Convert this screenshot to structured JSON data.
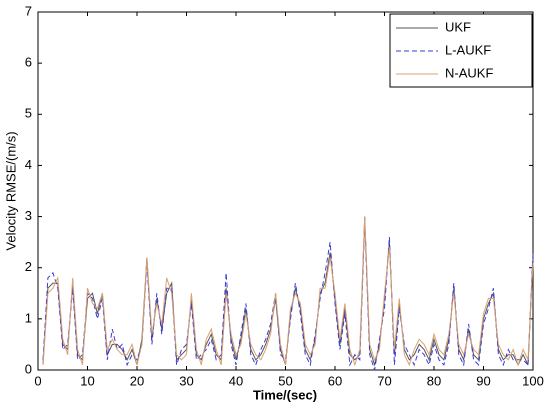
{
  "chart_data": {
    "type": "line",
    "xlabel": "Time/(sec)",
    "ylabel": "Velocity RMSE/(m/s)",
    "x": [
      1,
      2,
      3,
      4,
      5,
      6,
      7,
      8,
      9,
      10,
      11,
      12,
      13,
      14,
      15,
      16,
      17,
      18,
      19,
      20,
      21,
      22,
      23,
      24,
      25,
      26,
      27,
      28,
      29,
      30,
      31,
      32,
      33,
      34,
      35,
      36,
      37,
      38,
      39,
      40,
      41,
      42,
      43,
      44,
      45,
      46,
      47,
      48,
      49,
      50,
      51,
      52,
      53,
      54,
      55,
      56,
      57,
      58,
      59,
      60,
      61,
      62,
      63,
      64,
      65,
      66,
      67,
      68,
      69,
      70,
      71,
      72,
      73,
      74,
      75,
      76,
      77,
      78,
      79,
      80,
      81,
      82,
      83,
      84,
      85,
      86,
      87,
      88,
      89,
      90,
      91,
      92,
      93,
      94,
      95,
      96,
      97,
      98,
      99,
      100
    ],
    "series": [
      {
        "name": "UKF",
        "color": "#555555",
        "dashed": false,
        "values": [
          0.1,
          1.6,
          1.7,
          1.7,
          0.5,
          0.4,
          1.7,
          0.3,
          0.2,
          1.4,
          1.5,
          1.1,
          1.5,
          0.3,
          0.5,
          0.5,
          0.4,
          0.2,
          0.4,
          0.1,
          0.6,
          2.2,
          0.6,
          1.4,
          0.8,
          1.5,
          1.7,
          0.2,
          0.3,
          0.4,
          1.4,
          0.3,
          0.2,
          0.5,
          0.7,
          0.3,
          0.2,
          1.6,
          0.6,
          0.2,
          0.6,
          1.2,
          0.4,
          0.2,
          0.3,
          0.5,
          0.8,
          1.4,
          0.4,
          0.1,
          1.1,
          1.6,
          1.2,
          0.4,
          0.2,
          0.6,
          1.5,
          1.7,
          2.3,
          1.4,
          0.5,
          1.2,
          0.3,
          0.2,
          0.3,
          3.0,
          0.4,
          0.1,
          0.5,
          1.4,
          2.5,
          0.3,
          1.3,
          0.4,
          0.2,
          0.3,
          0.5,
          0.4,
          0.2,
          0.6,
          0.3,
          0.2,
          0.6,
          1.6,
          0.4,
          0.2,
          0.8,
          0.3,
          0.2,
          1.0,
          1.3,
          1.5,
          0.4,
          0.2,
          0.3,
          0.3,
          0.1,
          0.3,
          0.1,
          2.2
        ]
      },
      {
        "name": "L-AUKF",
        "color": "#3a3ad8",
        "dashed": true,
        "values": [
          0.2,
          1.8,
          1.9,
          1.6,
          0.4,
          0.5,
          1.6,
          0.2,
          0.3,
          1.5,
          1.4,
          1.0,
          1.4,
          0.2,
          0.8,
          0.4,
          0.5,
          0.1,
          0.3,
          0.2,
          0.5,
          2.1,
          0.5,
          1.5,
          0.7,
          1.6,
          1.6,
          0.1,
          0.4,
          0.5,
          1.3,
          0.2,
          0.3,
          0.4,
          0.6,
          0.2,
          0.3,
          1.9,
          0.5,
          0.1,
          0.7,
          1.3,
          0.3,
          0.1,
          0.4,
          0.6,
          0.9,
          1.5,
          0.3,
          0.2,
          1.0,
          1.7,
          1.1,
          0.3,
          0.1,
          0.7,
          1.4,
          1.9,
          2.5,
          1.3,
          0.4,
          1.1,
          0.1,
          0.3,
          0.2,
          2.9,
          0.3,
          0.0,
          0.6,
          1.2,
          2.6,
          0.1,
          1.2,
          0.5,
          0.3,
          0.1,
          0.4,
          0.3,
          0.1,
          0.5,
          0.2,
          0.1,
          0.5,
          1.7,
          0.3,
          0.1,
          0.9,
          0.2,
          0.1,
          0.9,
          1.2,
          1.6,
          0.3,
          0.1,
          0.4,
          0.2,
          0.2,
          0.2,
          0.1,
          2.3
        ]
      },
      {
        "name": "N-AUKF",
        "color": "#d9a070",
        "dashed": false,
        "values": [
          0.1,
          1.5,
          1.6,
          1.8,
          0.6,
          0.3,
          1.8,
          0.4,
          0.1,
          1.6,
          1.3,
          1.2,
          1.5,
          0.4,
          0.6,
          0.4,
          0.3,
          0.3,
          0.5,
          0.1,
          0.5,
          2.2,
          0.7,
          1.3,
          0.9,
          1.8,
          1.5,
          0.3,
          0.2,
          0.3,
          1.5,
          0.4,
          0.1,
          0.6,
          0.8,
          0.4,
          0.1,
          1.5,
          0.7,
          0.3,
          0.5,
          1.1,
          0.5,
          0.3,
          0.2,
          0.4,
          0.7,
          1.5,
          0.5,
          0.1,
          1.2,
          1.5,
          1.3,
          0.5,
          0.3,
          0.5,
          1.6,
          1.6,
          2.2,
          1.5,
          0.6,
          1.3,
          0.4,
          0.1,
          0.4,
          3.0,
          0.5,
          0.2,
          0.4,
          1.5,
          2.4,
          0.4,
          1.4,
          0.3,
          0.1,
          0.4,
          0.6,
          0.5,
          0.3,
          0.7,
          0.4,
          0.3,
          0.7,
          1.5,
          0.5,
          0.3,
          0.7,
          0.4,
          0.3,
          1.1,
          1.4,
          1.4,
          0.5,
          0.3,
          0.2,
          0.4,
          0.1,
          0.4,
          0.2,
          2.1
        ]
      }
    ],
    "xlim": [
      0,
      100
    ],
    "xticks": [
      0,
      10,
      20,
      30,
      40,
      50,
      60,
      70,
      80,
      90,
      100
    ],
    "ylim": [
      0,
      7
    ],
    "yticks": [
      0,
      1,
      2,
      3,
      4,
      5,
      6,
      7
    ],
    "legend": "upper right"
  }
}
